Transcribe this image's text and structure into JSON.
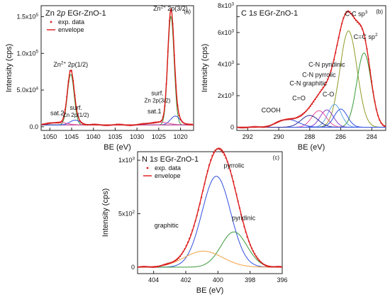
{
  "figure_type": "XPS spectra with peak deconvolution",
  "colors": {
    "data": "#d42020",
    "envelope": "#e01818",
    "green": "#3a9a3a",
    "blue": "#3050e0",
    "olive": "#8f9a26",
    "pink": "#ea4f9a",
    "purple": "#8a42cf",
    "lightblue": "#5fa3e8",
    "orange": "#f0a040",
    "darkblue": "#2a2a95",
    "axis": "#222222"
  },
  "chart_data": [
    {
      "type": "line",
      "panel_label": "(a)",
      "title_parts": {
        "main": "Zn 2",
        "italic": "p",
        "sample": "EGr-ZnO-1"
      },
      "xlabel": "BE (eV)",
      "ylabel": "Intensity (cps)",
      "x_reversed": true,
      "xlim": [
        1052,
        1017
      ],
      "ylim": [
        -5000,
        165000
      ],
      "x_ticks": [
        1050,
        1045,
        1040,
        1035,
        1030,
        1025,
        1020
      ],
      "y_ticks": [
        {
          "v": 0,
          "m": "0.0",
          "e": ""
        },
        {
          "v": 50000,
          "m": "5.0x10",
          "e": "4"
        },
        {
          "v": 100000,
          "m": "1.0x10",
          "e": "5"
        },
        {
          "v": 150000,
          "m": "1.5x10",
          "e": "5"
        }
      ],
      "legend": [
        "exp. data",
        "envelope"
      ],
      "background": 2500,
      "components": [
        {
          "name": "Zn2+ 2p(3/2)",
          "center": 1022.2,
          "fwhm": 1.7,
          "height": 148000,
          "color": "green"
        },
        {
          "name": "surf. Zn 2p(3/2)",
          "center": 1021.2,
          "fwhm": 2.6,
          "height": 12000,
          "color": "blue"
        },
        {
          "name": "sat.1",
          "center": 1025.0,
          "fwhm": 5.0,
          "height": 4000,
          "color": "pink"
        },
        {
          "name": "Zn2+ 2p(1/2)",
          "center": 1045.2,
          "fwhm": 1.8,
          "height": 69000,
          "color": "green"
        },
        {
          "name": "surf. Zn 2p(1/2)",
          "center": 1044.2,
          "fwhm": 2.8,
          "height": 6500,
          "color": "blue"
        },
        {
          "name": "sat.2",
          "center": 1048.0,
          "fwhm": 4.5,
          "height": 3500,
          "color": "pink"
        }
      ],
      "annotations": [
        {
          "text": "Zn2+ 2p(1/2)",
          "sup": "2+",
          "base": "Zn",
          "rest": " 2p(1/2)",
          "x": 1045.2,
          "y": 82000
        },
        {
          "text": "surf.",
          "x": 1044,
          "y": 23000,
          "line2": "Zn 2p(1/2)"
        },
        {
          "text": "sat.2",
          "x": 1048.3,
          "y": 16000
        },
        {
          "text": "Zn2+ 2p(3/2)",
          "sup": "2+",
          "base": "Zn",
          "rest": " 2p(3/2)",
          "x": 1022.3,
          "y": 158000
        },
        {
          "text": "surf.",
          "x": 1025.3,
          "y": 43000,
          "line2": "Zn 2p(3/2)"
        },
        {
          "text": "sat.1",
          "x": 1026.0,
          "y": 18000
        }
      ]
    },
    {
      "type": "line",
      "panel_label": "(b)",
      "title_parts": {
        "main": "C 1",
        "italic": "s",
        "sample": "EGr-ZnO-1"
      },
      "xlabel": "BE (eV)",
      "ylabel": "Intensity (cps)",
      "x_reversed": true,
      "xlim": [
        292.7,
        283.1
      ],
      "ylim": [
        -200,
        7700
      ],
      "x_ticks": [
        292,
        290,
        288,
        286,
        284
      ],
      "y_ticks": [
        {
          "v": 0,
          "m": "0",
          "e": ""
        },
        {
          "v": 2000,
          "m": "2x10",
          "e": "3"
        },
        {
          "v": 4000,
          "m": "4x10",
          "e": "3"
        },
        {
          "v": 6000,
          "m": "6x10",
          "e": "3"
        },
        {
          "v": 7000,
          "m": "",
          "e": ""
        }
      ],
      "y_top_label": {
        "m": "8x10",
        "e": "3"
      },
      "legend": [],
      "background": 0,
      "components": [
        {
          "name": "C-C sp3",
          "center": 285.5,
          "fwhm": 1.3,
          "height": 6100,
          "color": "olive"
        },
        {
          "name": "C=C sp2",
          "center": 284.5,
          "fwhm": 1.1,
          "height": 4700,
          "color": "green"
        },
        {
          "name": "C-N pyridinic",
          "center": 286.4,
          "fwhm": 1.0,
          "height": 1450,
          "color": "lightblue"
        },
        {
          "name": "C-N pyrrolic",
          "center": 286.9,
          "fwhm": 1.0,
          "height": 1100,
          "color": "purple"
        },
        {
          "name": "C-N graphitic",
          "center": 287.4,
          "fwhm": 1.1,
          "height": 1050,
          "color": "pink"
        },
        {
          "name": "C-O",
          "center": 286.0,
          "fwhm": 1.0,
          "height": 1150,
          "color": "blue"
        },
        {
          "name": "C=O",
          "center": 288.0,
          "fwhm": 1.3,
          "height": 750,
          "color": "darkblue"
        },
        {
          "name": "COOH",
          "center": 289.4,
          "fwhm": 1.6,
          "height": 500,
          "color": "blue"
        }
      ],
      "annotations": [
        {
          "text": "C-C sp3",
          "base": "C-C sp",
          "sup": "3",
          "rest": "",
          "x": 285.0,
          "y": 7050
        },
        {
          "text": "C=C sp2",
          "base": "C=C sp",
          "sup": "2",
          "rest": "",
          "x": 284.4,
          "y": 5600
        },
        {
          "text": "C-N pyridinic",
          "x": 286.9,
          "y": 3850
        },
        {
          "text": "C-N pyrrolic",
          "x": 287.4,
          "y": 3200
        },
        {
          "text": "C-N graphitic",
          "x": 288.1,
          "y": 2650
        },
        {
          "text": "C-O",
          "x": 286.8,
          "y": 1950
        },
        {
          "text": "C=O",
          "x": 288.7,
          "y": 1700
        },
        {
          "text": "COOH",
          "x": 290.5,
          "y": 950
        }
      ]
    },
    {
      "type": "line",
      "panel_label": "(c)",
      "title_parts": {
        "main": "N 1",
        "italic": "s",
        "sample": "EGr-ZnO-1"
      },
      "xlabel": "BE (eV)",
      "ylabel": "Intensity (cps)",
      "x_reversed": true,
      "xlim": [
        405,
        396
      ],
      "ylim": [
        -60,
        1080
      ],
      "x_ticks": [
        404,
        402,
        400,
        398,
        396
      ],
      "y_ticks": [
        {
          "v": 0,
          "m": "0",
          "e": ""
        },
        {
          "v": 500,
          "m": "5x10",
          "e": "2"
        },
        {
          "v": 1000,
          "m": "1x10",
          "e": "3"
        }
      ],
      "legend": [
        "exp. data",
        "envelope"
      ],
      "background": 0,
      "components": [
        {
          "name": "pyrrolic",
          "center": 400.1,
          "fwhm": 2.1,
          "height": 850,
          "color": "blue"
        },
        {
          "name": "pyridinic",
          "center": 399.0,
          "fwhm": 1.9,
          "height": 330,
          "color": "green"
        },
        {
          "name": "graphitic",
          "center": 400.9,
          "fwhm": 2.8,
          "height": 150,
          "color": "orange"
        }
      ],
      "annotations": [
        {
          "text": "pyrrolic",
          "x": 399.0,
          "y": 930
        },
        {
          "text": "pyridinic",
          "x": 398.4,
          "y": 440
        },
        {
          "text": "graphitic",
          "x": 403.2,
          "y": 370
        }
      ]
    }
  ]
}
